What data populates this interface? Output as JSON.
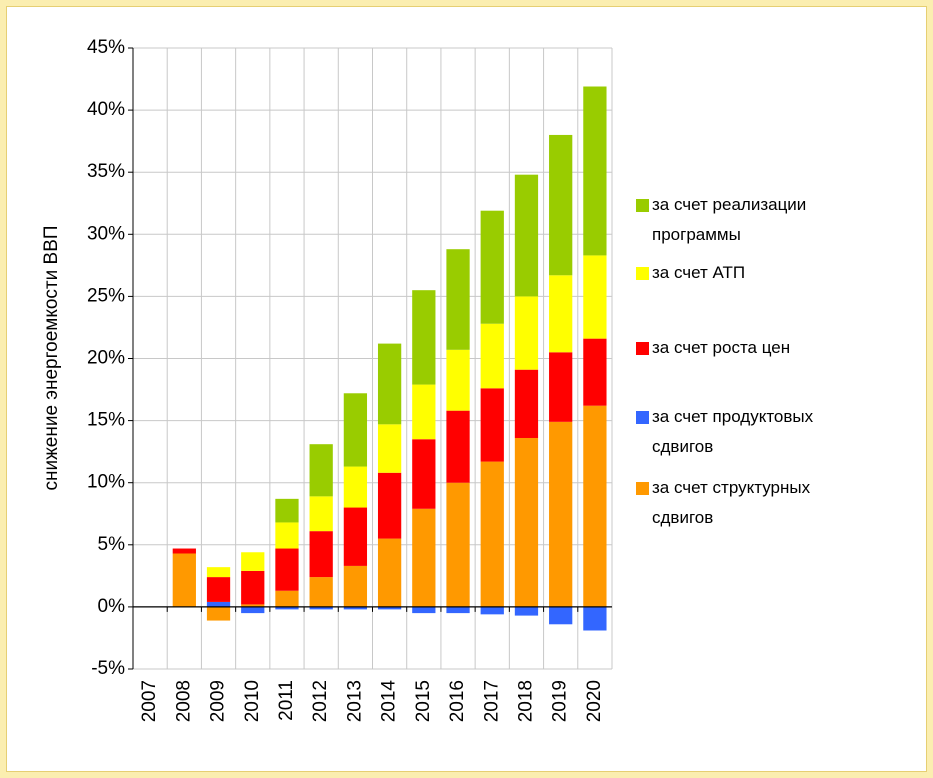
{
  "chart_data": {
    "type": "stacked-bar",
    "ylabel": "снижение энергоемкости ВВП",
    "categories": [
      "2007",
      "2008",
      "2009",
      "2010",
      "2011",
      "2012",
      "2013",
      "2014",
      "2015",
      "2016",
      "2017",
      "2018",
      "2019",
      "2020"
    ],
    "series": [
      {
        "name": "за счет реализации программы",
        "color": "#99cc00",
        "values": [
          0,
          0,
          0,
          0,
          1.9,
          4.2,
          5.9,
          6.5,
          7.6,
          8.1,
          9.1,
          9.8,
          11.3,
          13.6
        ]
      },
      {
        "name": "за счет АТП",
        "color": "#ffff00",
        "values": [
          0,
          0,
          0.8,
          1.5,
          2.1,
          2.8,
          3.3,
          3.9,
          4.4,
          4.9,
          5.2,
          5.9,
          6.2,
          6.7
        ]
      },
      {
        "name": "за счет роста цен",
        "color": "#ff0000",
        "values": [
          0,
          0.4,
          2.0,
          2.7,
          3.4,
          3.7,
          4.7,
          5.3,
          5.6,
          5.8,
          5.9,
          5.5,
          5.6,
          5.4
        ]
      },
      {
        "name": "за счет продуктовых сдвигов",
        "color": "#3366ff",
        "values": [
          0,
          0,
          0.4,
          -0.5,
          -0.2,
          -0.2,
          -0.2,
          -0.2,
          -0.5,
          -0.5,
          -0.6,
          -0.7,
          -1.4,
          -1.9
        ]
      },
      {
        "name": "за счет структурных сдвигов",
        "color": "#ff9900",
        "values": [
          0,
          4.3,
          -1.1,
          0.2,
          1.3,
          2.4,
          3.3,
          5.5,
          7.9,
          10.0,
          11.7,
          13.6,
          14.9,
          16.2
        ]
      }
    ],
    "ylim": [
      -5,
      45
    ],
    "yticks": [
      {
        "value": -5,
        "label": "-5%"
      },
      {
        "value": 0,
        "label": "0%"
      },
      {
        "value": 5,
        "label": "5%"
      },
      {
        "value": 10,
        "label": "10%"
      },
      {
        "value": 15,
        "label": "15%"
      },
      {
        "value": 20,
        "label": "20%"
      },
      {
        "value": 25,
        "label": "25%"
      },
      {
        "value": 30,
        "label": "30%"
      },
      {
        "value": 35,
        "label": "35%"
      },
      {
        "value": 40,
        "label": "40%"
      },
      {
        "value": 45,
        "label": "45%"
      }
    ],
    "grid": true,
    "legend": "right"
  }
}
